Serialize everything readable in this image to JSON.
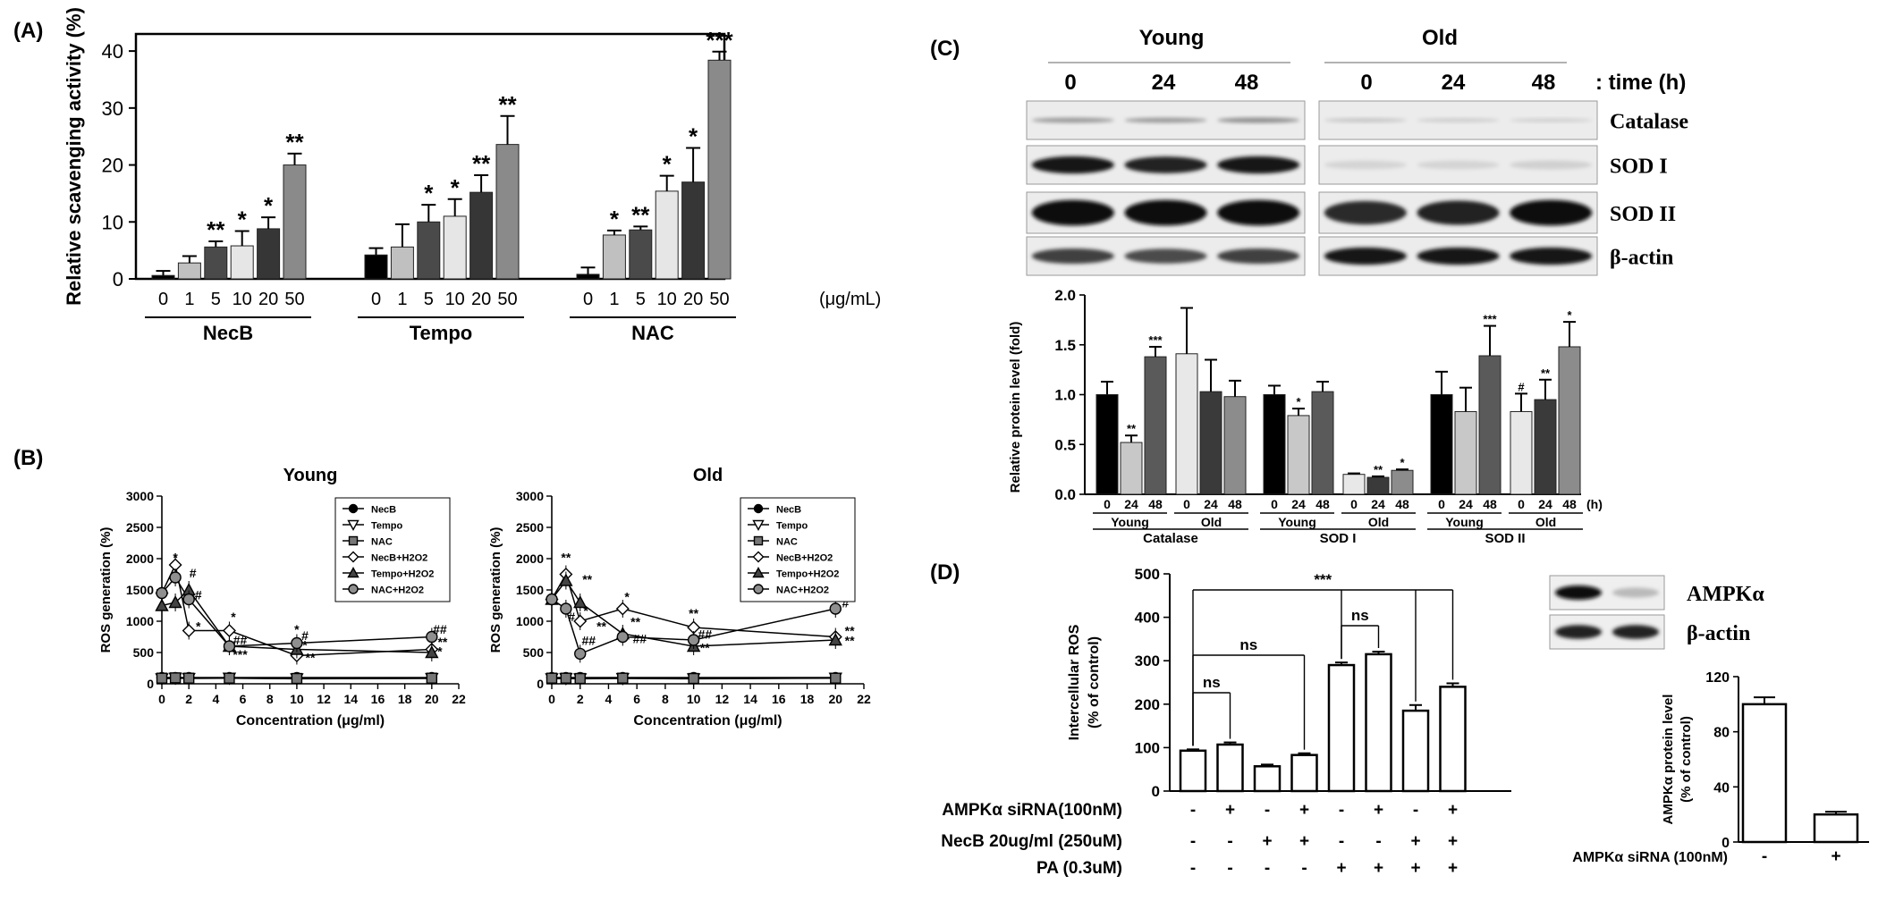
{
  "panels": {
    "A": "(A)",
    "B": "(B)",
    "C": "(C)",
    "D": "(D)"
  },
  "chart_data": [
    {
      "panel": "A",
      "type": "bar",
      "ylabel": "Relative scavenging activity (%)",
      "ylim": [
        0,
        43
      ],
      "yticks": [
        0,
        10,
        20,
        30,
        40
      ],
      "unit_label": "(μg/mL)",
      "groups": [
        {
          "name": "NecB",
          "concentrations": [
            "0",
            "1",
            "5",
            "10",
            "20",
            "50"
          ],
          "values": [
            0.6,
            2.8,
            5.6,
            5.8,
            8.8,
            20.0
          ],
          "errors": [
            0.8,
            1.2,
            1.0,
            2.6,
            2.0,
            2.0
          ],
          "sig": [
            "",
            "",
            "**",
            "*",
            "*",
            "**"
          ]
        },
        {
          "name": "Tempo",
          "concentrations": [
            "0",
            "1",
            "5",
            "10",
            "20",
            "50"
          ],
          "values": [
            4.2,
            5.6,
            10.0,
            11.0,
            15.2,
            23.6
          ],
          "errors": [
            1.2,
            4.0,
            3.0,
            3.0,
            3.0,
            5.0
          ],
          "sig": [
            "",
            "",
            "*",
            "*",
            "**",
            "**"
          ]
        },
        {
          "name": "NAC",
          "concentrations": [
            "0",
            "1",
            "5",
            "10",
            "20",
            "50"
          ],
          "values": [
            0.8,
            7.7,
            8.6,
            15.4,
            17.0,
            38.4
          ],
          "errors": [
            1.2,
            0.8,
            0.6,
            2.7,
            6.0,
            1.5
          ],
          "sig": [
            "",
            "*",
            "**",
            "*",
            "*",
            "***"
          ]
        }
      ],
      "bar_colors": [
        "#000000",
        "#c0c0c0",
        "#4a4a4a",
        "#e6e6e6",
        "#363636",
        "#8a8a8a"
      ]
    },
    {
      "panel": "B",
      "type": "line",
      "title": "Young",
      "xlabel": "Concentration (μg/ml)",
      "ylabel": "ROS generation (%)",
      "xlim": [
        0,
        22
      ],
      "ylim": [
        0,
        3000
      ],
      "xticks": [
        0,
        2,
        4,
        6,
        8,
        10,
        12,
        14,
        16,
        18,
        20,
        22
      ],
      "yticks": [
        0,
        500,
        1000,
        1500,
        2000,
        2500,
        3000
      ],
      "legend": "top-right",
      "series": [
        {
          "name": "NecB",
          "marker": "circle-filled",
          "x": [
            0,
            1,
            2,
            5,
            10,
            20
          ],
          "y": [
            100,
            100,
            100,
            100,
            100,
            100
          ]
        },
        {
          "name": "Tempo",
          "marker": "tri-down-open",
          "x": [
            0,
            1,
            2,
            5,
            10,
            20
          ],
          "y": [
            80,
            90,
            85,
            90,
            80,
            85
          ]
        },
        {
          "name": "NAC",
          "marker": "square-filled",
          "x": [
            0,
            1,
            2,
            5,
            10,
            20
          ],
          "y": [
            90,
            95,
            90,
            90,
            85,
            90
          ]
        },
        {
          "name": "NecB+H2O2",
          "marker": "diamond-open",
          "x": [
            0,
            1,
            2,
            5,
            10,
            20
          ],
          "y": [
            1450,
            1900,
            850,
            850,
            450,
            550
          ]
        },
        {
          "name": "Tempo+H2O2",
          "marker": "tri-up-filled",
          "x": [
            0,
            1,
            2,
            5,
            10,
            20
          ],
          "y": [
            1250,
            1300,
            1500,
            600,
            550,
            500
          ]
        },
        {
          "name": "NAC+H2O2",
          "marker": "circle-grey",
          "x": [
            0,
            1,
            2,
            5,
            10,
            20
          ],
          "y": [
            1450,
            1700,
            1350,
            600,
            650,
            750
          ]
        }
      ],
      "annotations": [
        {
          "x": 1,
          "y": 1950,
          "text": "*"
        },
        {
          "x": 2.3,
          "y": 1700,
          "text": "#"
        },
        {
          "x": 2.7,
          "y": 1350,
          "text": "#"
        },
        {
          "x": 2.7,
          "y": 850,
          "text": "*"
        },
        {
          "x": 5.3,
          "y": 1000,
          "text": "*"
        },
        {
          "x": 5.8,
          "y": 630,
          "text": "##"
        },
        {
          "x": 5.8,
          "y": 400,
          "text": "***"
        },
        {
          "x": 10,
          "y": 800,
          "text": "*"
        },
        {
          "x": 10.6,
          "y": 700,
          "text": "#"
        },
        {
          "x": 10.6,
          "y": 550,
          "text": "*"
        },
        {
          "x": 11,
          "y": 350,
          "text": "**"
        },
        {
          "x": 20.6,
          "y": 800,
          "text": "##"
        },
        {
          "x": 20.8,
          "y": 600,
          "text": "**"
        },
        {
          "x": 20.6,
          "y": 450,
          "text": "*"
        }
      ]
    },
    {
      "panel": "B",
      "type": "line",
      "title": "Old",
      "xlabel": "Concentration (μg/ml)",
      "ylabel": "ROS generation (%)",
      "xlim": [
        0,
        22
      ],
      "ylim": [
        0,
        3000
      ],
      "xticks": [
        0,
        2,
        4,
        6,
        8,
        10,
        12,
        14,
        16,
        18,
        20,
        22
      ],
      "yticks": [
        0,
        500,
        1000,
        1500,
        2000,
        2500,
        3000
      ],
      "legend": "top-right",
      "series": [
        {
          "name": "NecB",
          "marker": "circle-filled",
          "x": [
            0,
            1,
            2,
            5,
            10,
            20
          ],
          "y": [
            100,
            100,
            100,
            100,
            100,
            100
          ]
        },
        {
          "name": "Tempo",
          "marker": "tri-down-open",
          "x": [
            0,
            1,
            2,
            5,
            10,
            20
          ],
          "y": [
            80,
            85,
            80,
            85,
            80,
            90
          ]
        },
        {
          "name": "NAC",
          "marker": "square-filled",
          "x": [
            0,
            1,
            2,
            5,
            10,
            20
          ],
          "y": [
            90,
            90,
            85,
            90,
            85,
            90
          ]
        },
        {
          "name": "NecB+H2O2",
          "marker": "diamond-open",
          "x": [
            0,
            1,
            2,
            5,
            10,
            20
          ],
          "y": [
            1350,
            1750,
            1000,
            1200,
            900,
            750
          ]
        },
        {
          "name": "Tempo+H2O2",
          "marker": "tri-up-filled",
          "x": [
            0,
            1,
            2,
            5,
            10,
            20
          ],
          "y": [
            1350,
            1650,
            1300,
            800,
            600,
            700
          ]
        },
        {
          "name": "NAC+H2O2",
          "marker": "circle-grey",
          "x": [
            0,
            1,
            2,
            5,
            10,
            20
          ],
          "y": [
            1350,
            1200,
            480,
            750,
            700,
            1200
          ]
        }
      ],
      "annotations": [
        {
          "x": 1,
          "y": 1950,
          "text": "**"
        },
        {
          "x": 2.5,
          "y": 1600,
          "text": "**"
        },
        {
          "x": 1.4,
          "y": 1000,
          "text": "#"
        },
        {
          "x": 2.4,
          "y": 1100,
          "text": "*"
        },
        {
          "x": 3.5,
          "y": 850,
          "text": "**"
        },
        {
          "x": 2.6,
          "y": 620,
          "text": "##"
        },
        {
          "x": 5.3,
          "y": 1320,
          "text": "*"
        },
        {
          "x": 5.9,
          "y": 920,
          "text": "**"
        },
        {
          "x": 6.2,
          "y": 650,
          "text": "##"
        },
        {
          "x": 10,
          "y": 1060,
          "text": "**"
        },
        {
          "x": 10.8,
          "y": 720,
          "text": "##"
        },
        {
          "x": 10.8,
          "y": 510,
          "text": "**"
        },
        {
          "x": 20.7,
          "y": 1220,
          "text": "#"
        },
        {
          "x": 21,
          "y": 780,
          "text": "**"
        },
        {
          "x": 21,
          "y": 620,
          "text": "**"
        }
      ]
    },
    {
      "panel": "C",
      "type": "bar",
      "ylabel": "Relative protein level (fold)",
      "ylim": [
        0,
        2.0
      ],
      "yticks": [
        0.0,
        0.5,
        1.0,
        1.5,
        2.0
      ],
      "time_unit": "(h)",
      "groups": [
        {
          "name": "Catalase",
          "time_labels": [
            "0",
            "24",
            "48",
            "0",
            "24",
            "48"
          ],
          "subgroups": [
            "Young",
            "Old"
          ],
          "values": [
            1.0,
            0.52,
            1.38,
            1.41,
            1.03,
            0.98
          ],
          "errors": [
            0.13,
            0.07,
            0.1,
            0.46,
            0.32,
            0.16
          ],
          "sig": [
            "",
            "**",
            "***",
            "",
            "",
            ""
          ]
        },
        {
          "name": "SOD I",
          "time_labels": [
            "0",
            "24",
            "48",
            "0",
            "24",
            "48"
          ],
          "subgroups": [
            "Young",
            "Old"
          ],
          "values": [
            1.0,
            0.79,
            1.03,
            0.2,
            0.17,
            0.24
          ],
          "errors": [
            0.09,
            0.07,
            0.1,
            0.01,
            0.01,
            0.01
          ],
          "sig": [
            "",
            "*",
            "",
            "",
            "**",
            "*"
          ]
        },
        {
          "name": "SOD II",
          "time_labels": [
            "0",
            "24",
            "48",
            "0",
            "24",
            "48"
          ],
          "subgroups": [
            "Young",
            "Old"
          ],
          "values": [
            1.0,
            0.83,
            1.39,
            0.83,
            0.95,
            1.48
          ],
          "errors": [
            0.23,
            0.24,
            0.3,
            0.18,
            0.2,
            0.25
          ],
          "sig": [
            "",
            "",
            "***",
            "#",
            "**",
            "*"
          ]
        }
      ],
      "bar_colors": [
        "#000000",
        "#c8c8c8",
        "#5a5a5a",
        "#e8e8e8",
        "#3a3a3a",
        "#8c8c8c"
      ]
    },
    {
      "panel": "D",
      "type": "bar",
      "ylabel_line1": "Intercellular ROS",
      "ylabel_line2": "(% of control)",
      "ylim": [
        0,
        500
      ],
      "yticks": [
        0,
        100,
        200,
        300,
        400,
        500
      ],
      "values": [
        93,
        107,
        57,
        83,
        290,
        315,
        185,
        240
      ],
      "errors": [
        3,
        5,
        4,
        4,
        6,
        6,
        13,
        8
      ],
      "conditions": [
        {
          "label": "AMPKα siRNA(100nM)",
          "signs": [
            "-",
            "+",
            "-",
            "+",
            "-",
            "+",
            "-",
            "+"
          ]
        },
        {
          "label": "NecB 20ug/ml (250uM)",
          "signs": [
            "-",
            "-",
            "+",
            "+",
            "-",
            "-",
            "+",
            "+"
          ]
        },
        {
          "label": "PA (0.3uM)",
          "signs": [
            "-",
            "-",
            "-",
            "-",
            "+",
            "+",
            "+",
            "+"
          ]
        }
      ],
      "brackets": [
        {
          "from": 0,
          "to": 1,
          "text": "ns"
        },
        {
          "from": 0,
          "to": 3,
          "text": "ns"
        },
        {
          "from": 4,
          "to": 5,
          "text": "ns"
        },
        {
          "from": 0,
          "to": 7,
          "text": "***"
        }
      ]
    },
    {
      "panel": "D",
      "type": "bar",
      "ylabel_line1": "AMPKα protein level",
      "ylabel_line2": "(% of control)",
      "ylim": [
        0,
        120
      ],
      "yticks": [
        0,
        40,
        80,
        120
      ],
      "categories": [
        "-",
        "+"
      ],
      "values": [
        100,
        20
      ],
      "errors": [
        5,
        2
      ],
      "xlabel": "AMPKα siRNA (100nM)"
    }
  ],
  "blots": {
    "C": {
      "groups": [
        "Young",
        "Old"
      ],
      "times": [
        "0",
        "24",
        "48",
        "0",
        "24",
        "48"
      ],
      "time_label": ": time (h)",
      "rows": [
        "Catalase",
        "SOD I",
        "SOD II",
        "β-actin"
      ]
    },
    "D": {
      "rows": [
        "AMPKα",
        "β-actin"
      ]
    }
  }
}
